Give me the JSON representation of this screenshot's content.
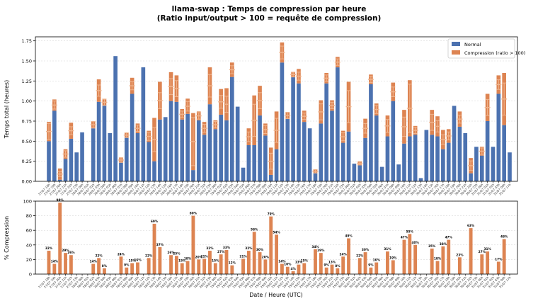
{
  "chart_data": [
    {
      "type": "bar",
      "title": "llama-swap : Temps de compression par heure",
      "subtitle": "(Ratio input/output > 100 = requête de compression)",
      "xlabel": "",
      "ylabel": "Temps total (heures)",
      "ylim": [
        0,
        1.8
      ],
      "yticks": [
        "0.00",
        "0.25",
        "0.50",
        "0.75",
        "1.00",
        "1.25",
        "1.50",
        "1.75"
      ],
      "grid": true,
      "legend_position": "top-right",
      "stacked": true,
      "colors": {
        "normal": "#4c72b0",
        "compression": "#dd8452"
      },
      "series": [
        {
          "name": "Normal",
          "values": [
            0.5,
            0.88,
            0.02,
            0.28,
            0.53,
            0.36,
            0.61,
            0.0,
            0.66,
            0.99,
            0.95,
            0.6,
            1.56,
            0.24,
            0.55,
            1.09,
            0.6,
            1.42,
            0.49,
            0.25,
            0.77,
            0.8,
            1.0,
            0.99,
            0.77,
            0.84,
            0.14,
            0.76,
            0.58,
            0.96,
            0.65,
            0.83,
            0.76,
            1.3,
            0.93,
            0.17,
            0.45,
            0.45,
            0.82,
            0.57,
            0.08,
            0.4,
            1.48,
            0.78,
            1.3,
            1.22,
            0.74,
            0.66,
            0.1,
            0.72,
            1.22,
            0.88,
            1.42,
            0.48,
            0.62,
            0.22,
            0.2,
            0.54,
            1.21,
            0.82,
            0.18,
            0.56,
            1.0,
            0.21,
            0.47,
            0.56,
            0.58,
            0.04,
            0.64,
            0.58,
            0.56,
            0.4,
            0.48,
            0.94,
            0.68,
            0.6,
            0.1,
            0.43,
            0.32,
            0.75,
            0.43,
            1.09,
            0.7,
            0.36
          ]
        },
        {
          "name": "Compression (ratio > 100)",
          "values": [
            0.24,
            0.14,
            0.14,
            0.12,
            0.2,
            0.0,
            0.0,
            0.0,
            0.09,
            0.28,
            0.07,
            0.0,
            0.0,
            0.05,
            0.05,
            0.2,
            0.12,
            0.0,
            0.14,
            0.54,
            0.47,
            0.0,
            0.36,
            0.33,
            0.13,
            0.19,
            0.71,
            0.11,
            0.16,
            0.46,
            0.11,
            0.32,
            0.4,
            0.18,
            0.0,
            0.0,
            0.21,
            0.62,
            0.37,
            0.15,
            0.34,
            0.47,
            0.25,
            0.08,
            0.06,
            0.18,
            0.14,
            0.0,
            0.05,
            0.29,
            0.13,
            0.13,
            0.13,
            0.15,
            0.62,
            0.0,
            0.05,
            0.24,
            0.12,
            0.15,
            0.0,
            0.26,
            0.23,
            0.0,
            0.42,
            0.7,
            0.11,
            0.0,
            0.0,
            0.31,
            0.25,
            0.24,
            0.17,
            0.0,
            0.19,
            0.0,
            0.19,
            0.0,
            0.11,
            0.34,
            0.0,
            0.23,
            0.65,
            0.0
          ]
        }
      ],
      "error_bars": {
        "color": "#f0b58e",
        "values": [
          0.1,
          0.05,
          0.03,
          0.04,
          0.05,
          0.0,
          0.0,
          0.0,
          0.04,
          0.07,
          0.04,
          0.0,
          0.0,
          0.03,
          0.03,
          0.05,
          0.04,
          0.0,
          0.05,
          0.15,
          0.1,
          0.0,
          0.1,
          0.1,
          0.04,
          0.06,
          0.3,
          0.04,
          0.05,
          0.14,
          0.04,
          0.08,
          0.1,
          0.05,
          0.0,
          0.0,
          0.06,
          0.2,
          0.1,
          0.05,
          0.1,
          0.15,
          0.08,
          0.04,
          0.03,
          0.05,
          0.04,
          0.0,
          0.02,
          0.1,
          0.04,
          0.04,
          0.04,
          0.05,
          0.2,
          0.0,
          0.02,
          0.06,
          0.04,
          0.05,
          0.0,
          0.08,
          0.06,
          0.0,
          0.12,
          0.3,
          0.04,
          0.0,
          0.0,
          0.1,
          0.07,
          0.06,
          0.05,
          0.0,
          0.05,
          0.0,
          0.06,
          0.0,
          0.04,
          0.1,
          0.0,
          0.06,
          0.2,
          0.0
        ]
      }
    },
    {
      "type": "bar",
      "title": "",
      "xlabel": "Date / Heure (UTC)",
      "ylabel": "% Compression",
      "ylim": [
        0,
        100
      ],
      "yticks": [
        "0",
        "20",
        "40",
        "60",
        "80",
        "100"
      ],
      "grid": true,
      "colors": {
        "bar": "#dd8452"
      },
      "categories": [
        "27/07 18h",
        "27/07 19h",
        "27/07 20h",
        "27/07 21h",
        "27/07 22h",
        "27/07 23h",
        "28/07 00h",
        "28/07 01h",
        "28/07 02h",
        "28/07 03h",
        "28/07 04h",
        "28/07 05h",
        "28/07 06h",
        "28/07 07h",
        "28/07 08h",
        "28/07 09h",
        "28/07 10h",
        "28/07 11h",
        "28/07 12h",
        "28/07 13h",
        "28/07 14h",
        "28/07 15h",
        "28/07 16h",
        "28/07 17h",
        "28/07 18h",
        "28/07 19h",
        "28/07 20h",
        "28/07 21h",
        "28/07 22h",
        "28/07 23h",
        "29/07 00h",
        "29/07 01h",
        "29/07 02h",
        "29/07 03h",
        "29/07 04h",
        "29/07 05h",
        "29/07 06h",
        "29/07 07h",
        "29/07 08h",
        "29/07 09h",
        "29/07 10h",
        "29/07 11h",
        "29/07 12h",
        "29/07 13h",
        "29/07 14h",
        "29/07 15h",
        "29/07 16h",
        "29/07 17h",
        "29/07 18h",
        "29/07 19h",
        "29/07 20h",
        "29/07 21h",
        "29/07 22h",
        "29/07 23h",
        "30/07 00h",
        "30/07 01h",
        "30/07 02h",
        "30/07 03h",
        "30/07 04h",
        "30/07 05h",
        "30/07 06h",
        "30/07 07h",
        "30/07 08h",
        "30/07 09h",
        "30/07 10h",
        "30/07 11h",
        "30/07 12h",
        "30/07 13h",
        "30/07 14h",
        "30/07 15h",
        "30/07 16h",
        "30/07 17h",
        "30/07 18h",
        "30/07 19h",
        "30/07 20h",
        "30/07 21h",
        "30/07 22h",
        "30/07 23h",
        "31/07 00h",
        "31/07 01h",
        "31/07 02h",
        "31/07 03h",
        "31/07 04h",
        "31/07 17h"
      ],
      "values": [
        32,
        14,
        98,
        29,
        26,
        0,
        0,
        0,
        14,
        22,
        8,
        0,
        0,
        24,
        9,
        15,
        16,
        0,
        22,
        69,
        37,
        0,
        26,
        25,
        15,
        18,
        80,
        20,
        21,
        32,
        15,
        27,
        33,
        12,
        0,
        21,
        32,
        58,
        30,
        20,
        79,
        54,
        14,
        10,
        4,
        13,
        15,
        0,
        34,
        29,
        9,
        13,
        8,
        24,
        49,
        0,
        22,
        30,
        9,
        16,
        0,
        31,
        19,
        0,
        47,
        55,
        40,
        0,
        0,
        35,
        18,
        38,
        47,
        0,
        23,
        0,
        63,
        0,
        27,
        31,
        0,
        17,
        48,
        0
      ],
      "data_labels": [
        "32%",
        "14%",
        "98%",
        "29%",
        "26%",
        "",
        "",
        "",
        "14%",
        "22%",
        "8%",
        "",
        "",
        "24%",
        "9%",
        "15%",
        "16%",
        "",
        "22%",
        "69%",
        "37%",
        "",
        "26%",
        "25%",
        "15%",
        "18%",
        "80%",
        "20%",
        "21%",
        "32%",
        "15%",
        "27%",
        "33%",
        "12%",
        "",
        "21%",
        "32%",
        "58%",
        "30%",
        "20%",
        "79%",
        "54%",
        "14%",
        "10%",
        "4%",
        "13%",
        "15%",
        "",
        "34%",
        "29%",
        "9%",
        "13%",
        "8%",
        "24%",
        "49%",
        "",
        "22%",
        "30%",
        "9%",
        "16%",
        "",
        "31%",
        "19%",
        "",
        "47%",
        "55%",
        "40%",
        "",
        "",
        "35%",
        "18%",
        "38%",
        "47%",
        "",
        "23%",
        "",
        "63%",
        "",
        "27%",
        "31%",
        "",
        "17%",
        "48%",
        ""
      ]
    }
  ]
}
